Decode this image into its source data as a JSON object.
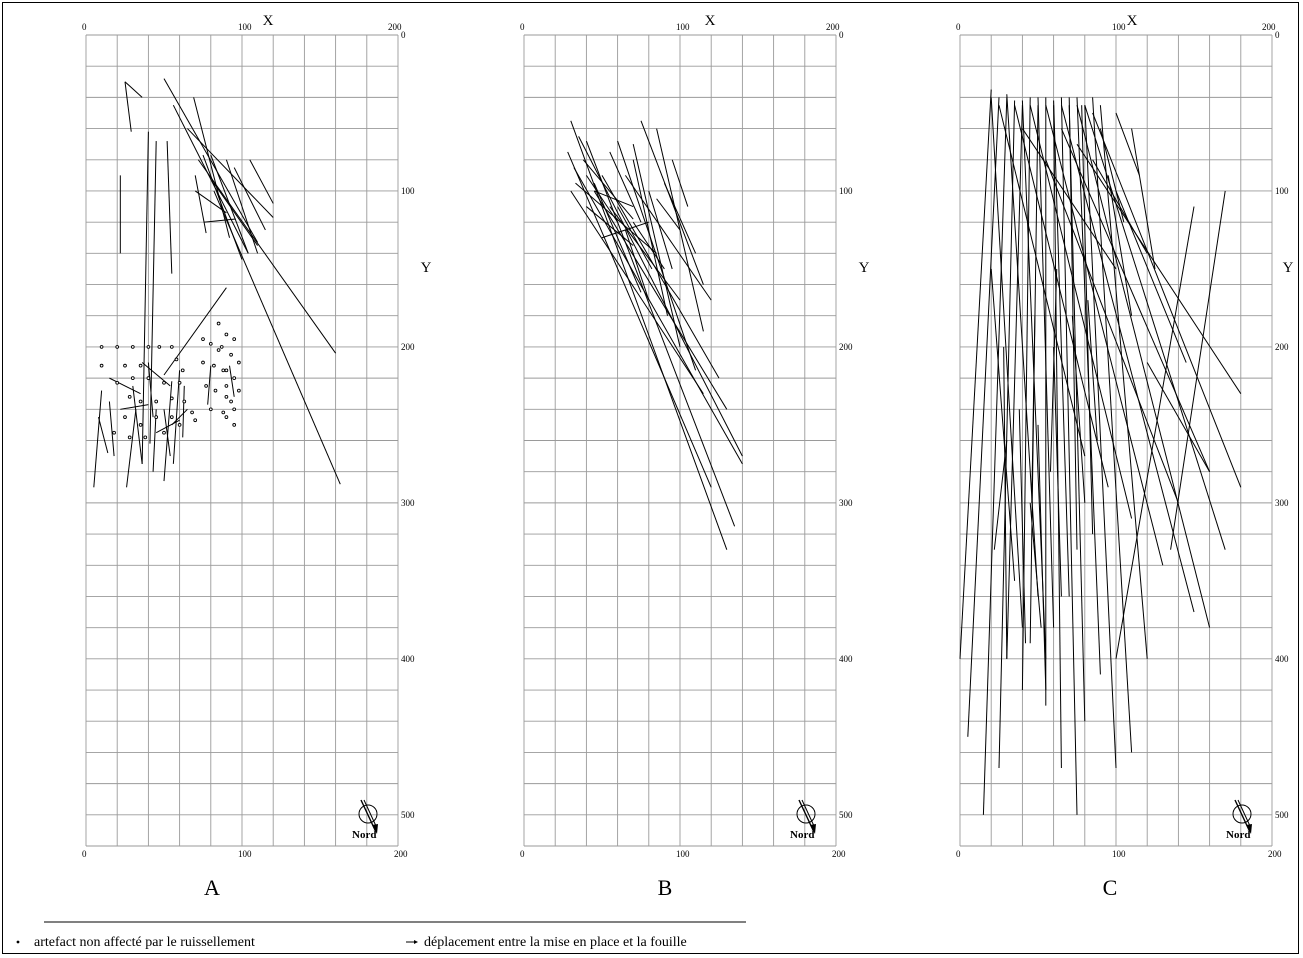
{
  "axes": {
    "x_title": "X",
    "y_title": "Y"
  },
  "north_label": "Nord",
  "legend": {
    "dot_label": "artefact non affecté par le ruissellement",
    "arrow_label": "déplacement entre la mise en place et la fouille"
  },
  "chart_data": [
    {
      "type": "diagram-plan",
      "panel": "A",
      "x_ticks_top": [
        "0",
        "100",
        "200"
      ],
      "x_ticks_bottom": [
        "0",
        "100",
        "200"
      ],
      "y_ticks": [
        "0",
        "100",
        "200",
        "300",
        "400",
        "500"
      ],
      "xlim": [
        0,
        200
      ],
      "ylim": [
        0,
        520
      ],
      "segments": [
        [
          25,
          30,
          36,
          40
        ],
        [
          25,
          30,
          29,
          62
        ],
        [
          22,
          90,
          22,
          140
        ],
        [
          40,
          62,
          36,
          275
        ],
        [
          45,
          68,
          41,
          262
        ],
        [
          52,
          68,
          55,
          153
        ],
        [
          50,
          28,
          110,
          133
        ],
        [
          56,
          45,
          104,
          140
        ],
        [
          69,
          40,
          92,
          130
        ],
        [
          65,
          60,
          120,
          117
        ],
        [
          75,
          77,
          100,
          144
        ],
        [
          80,
          77,
          104,
          140
        ],
        [
          82,
          95,
          110,
          135
        ],
        [
          90,
          80,
          110,
          140
        ],
        [
          70,
          90,
          77,
          127
        ],
        [
          95,
          85,
          115,
          125
        ],
        [
          70,
          100,
          90,
          114
        ],
        [
          76,
          120,
          96,
          118
        ],
        [
          105,
          80,
          120,
          108
        ],
        [
          72,
          80,
          160,
          204
        ],
        [
          82,
          100,
          163,
          288
        ],
        [
          50,
          218,
          90,
          162
        ],
        [
          36,
          210,
          54,
          225
        ],
        [
          15,
          220,
          35,
          230
        ],
        [
          22,
          240,
          40,
          237
        ],
        [
          10,
          228,
          5,
          290
        ],
        [
          15,
          235,
          18,
          270
        ],
        [
          32,
          240,
          26,
          290
        ],
        [
          30,
          225,
          36,
          275
        ],
        [
          45,
          240,
          43,
          280
        ],
        [
          55,
          222,
          50,
          286
        ],
        [
          60,
          215,
          56,
          275
        ],
        [
          63,
          225,
          62,
          258
        ],
        [
          45,
          255,
          60,
          247
        ],
        [
          50,
          240,
          54,
          270
        ],
        [
          65,
          240,
          55,
          250
        ],
        [
          40,
          210,
          43,
          245
        ],
        [
          8,
          245,
          14,
          268
        ],
        [
          80,
          212,
          78,
          237
        ],
        [
          92,
          212,
          95,
          232
        ]
      ],
      "dots": [
        [
          10,
          200
        ],
        [
          10,
          212
        ],
        [
          20,
          200
        ],
        [
          25,
          212
        ],
        [
          30,
          200
        ],
        [
          35,
          212
        ],
        [
          40,
          200
        ],
        [
          47,
          200
        ],
        [
          55,
          200
        ],
        [
          58,
          208
        ],
        [
          62,
          215
        ],
        [
          20,
          223
        ],
        [
          30,
          220
        ],
        [
          40,
          220
        ],
        [
          50,
          223
        ],
        [
          60,
          223
        ],
        [
          28,
          232
        ],
        [
          35,
          235
        ],
        [
          45,
          235
        ],
        [
          55,
          233
        ],
        [
          63,
          235
        ],
        [
          25,
          245
        ],
        [
          35,
          250
        ],
        [
          45,
          245
        ],
        [
          55,
          245
        ],
        [
          68,
          242
        ],
        [
          18,
          255
        ],
        [
          28,
          258
        ],
        [
          38,
          258
        ],
        [
          50,
          255
        ],
        [
          60,
          250
        ],
        [
          70,
          247
        ],
        [
          75,
          195
        ],
        [
          80,
          198
        ],
        [
          85,
          202
        ],
        [
          75,
          210
        ],
        [
          82,
          212
        ],
        [
          88,
          215
        ],
        [
          77,
          225
        ],
        [
          83,
          228
        ],
        [
          90,
          225
        ],
        [
          80,
          240
        ],
        [
          88,
          242
        ],
        [
          93,
          235
        ],
        [
          85,
          185
        ],
        [
          90,
          192
        ],
        [
          95,
          195
        ],
        [
          87,
          200
        ],
        [
          93,
          205
        ],
        [
          98,
          210
        ],
        [
          90,
          215
        ],
        [
          95,
          220
        ],
        [
          98,
          228
        ],
        [
          90,
          232
        ],
        [
          95,
          240
        ],
        [
          90,
          245
        ],
        [
          95,
          250
        ]
      ]
    },
    {
      "type": "diagram-plan",
      "panel": "B",
      "x_ticks_top": [
        "0",
        "100",
        "200"
      ],
      "x_ticks_bottom": [
        "0",
        "100",
        "200"
      ],
      "y_ticks": [
        "0",
        "100",
        "200",
        "300",
        "400",
        "500"
      ],
      "xlim": [
        0,
        200
      ],
      "ylim": [
        0,
        520
      ],
      "segments": [
        [
          30,
          55,
          130,
          330
        ],
        [
          35,
          65,
          140,
          270
        ],
        [
          28,
          75,
          120,
          290
        ],
        [
          40,
          68,
          135,
          315
        ],
        [
          32,
          85,
          140,
          275
        ],
        [
          45,
          100,
          130,
          240
        ],
        [
          30,
          100,
          115,
          230
        ],
        [
          50,
          90,
          125,
          220
        ],
        [
          60,
          68,
          110,
          215
        ],
        [
          70,
          70,
          100,
          200
        ],
        [
          75,
          55,
          115,
          160
        ],
        [
          70,
          80,
          92,
          180
        ],
        [
          85,
          60,
          115,
          190
        ],
        [
          55,
          110,
          100,
          170
        ],
        [
          80,
          100,
          95,
          150
        ],
        [
          65,
          90,
          120,
          170
        ],
        [
          40,
          110,
          70,
          135
        ],
        [
          90,
          95,
          110,
          140
        ],
        [
          33,
          95,
          85,
          140
        ],
        [
          45,
          95,
          75,
          165
        ],
        [
          60,
          110,
          82,
          150
        ],
        [
          38,
          80,
          70,
          118
        ],
        [
          55,
          75,
          75,
          120
        ],
        [
          70,
          120,
          90,
          150
        ],
        [
          50,
          130,
          80,
          120
        ],
        [
          85,
          105,
          100,
          125
        ],
        [
          95,
          80,
          105,
          110
        ],
        [
          40,
          90,
          60,
          120
        ],
        [
          45,
          100,
          70,
          110
        ],
        [
          65,
          125,
          80,
          170
        ]
      ]
    },
    {
      "type": "diagram-plan",
      "panel": "C",
      "x_ticks_top": [
        "0",
        "100",
        "200"
      ],
      "x_ticks_bottom": [
        "0",
        "100",
        "200"
      ],
      "y_ticks": [
        "0",
        "100",
        "200",
        "300",
        "400",
        "500"
      ],
      "xlim": [
        0,
        200
      ],
      "ylim": [
        0,
        520
      ],
      "segments": [
        [
          20,
          35,
          0,
          400
        ],
        [
          25,
          40,
          5,
          450
        ],
        [
          30,
          40,
          15,
          500
        ],
        [
          35,
          42,
          25,
          470
        ],
        [
          40,
          45,
          30,
          400
        ],
        [
          45,
          40,
          40,
          420
        ],
        [
          50,
          45,
          45,
          390
        ],
        [
          55,
          40,
          55,
          430
        ],
        [
          60,
          45,
          65,
          470
        ],
        [
          65,
          40,
          75,
          500
        ],
        [
          70,
          45,
          80,
          440
        ],
        [
          75,
          40,
          90,
          410
        ],
        [
          80,
          45,
          100,
          470
        ],
        [
          85,
          40,
          110,
          460
        ],
        [
          90,
          45,
          120,
          400
        ],
        [
          20,
          40,
          40,
          380
        ],
        [
          30,
          38,
          50,
          360
        ],
        [
          40,
          42,
          55,
          400
        ],
        [
          50,
          40,
          60,
          380
        ],
        [
          60,
          42,
          70,
          360
        ],
        [
          70,
          40,
          75,
          330
        ],
        [
          78,
          45,
          85,
          320
        ],
        [
          25,
          45,
          80,
          270
        ],
        [
          35,
          45,
          95,
          290
        ],
        [
          45,
          45,
          110,
          310
        ],
        [
          55,
          45,
          130,
          340
        ],
        [
          65,
          45,
          150,
          370
        ],
        [
          75,
          45,
          160,
          380
        ],
        [
          80,
          45,
          170,
          330
        ],
        [
          85,
          50,
          180,
          290
        ],
        [
          40,
          60,
          100,
          150
        ],
        [
          55,
          80,
          140,
          300
        ],
        [
          65,
          60,
          160,
          280
        ],
        [
          75,
          70,
          180,
          230
        ],
        [
          85,
          80,
          120,
          140
        ],
        [
          95,
          90,
          110,
          180
        ],
        [
          100,
          100,
          145,
          210
        ],
        [
          20,
          150,
          35,
          350
        ],
        [
          28,
          200,
          30,
          400
        ],
        [
          50,
          250,
          55,
          420
        ],
        [
          45,
          300,
          52,
          380
        ],
        [
          60,
          200,
          65,
          360
        ],
        [
          38,
          240,
          42,
          390
        ],
        [
          30,
          260,
          22,
          330
        ],
        [
          48,
          180,
          46,
          300
        ],
        [
          62,
          150,
          58,
          280
        ],
        [
          72,
          180,
          80,
          300
        ],
        [
          82,
          170,
          88,
          260
        ],
        [
          150,
          110,
          100,
          400
        ],
        [
          170,
          100,
          135,
          330
        ],
        [
          160,
          280,
          120,
          210
        ],
        [
          90,
          60,
          105,
          120
        ],
        [
          100,
          50,
          115,
          90
        ],
        [
          110,
          60,
          125,
          150
        ]
      ]
    }
  ]
}
